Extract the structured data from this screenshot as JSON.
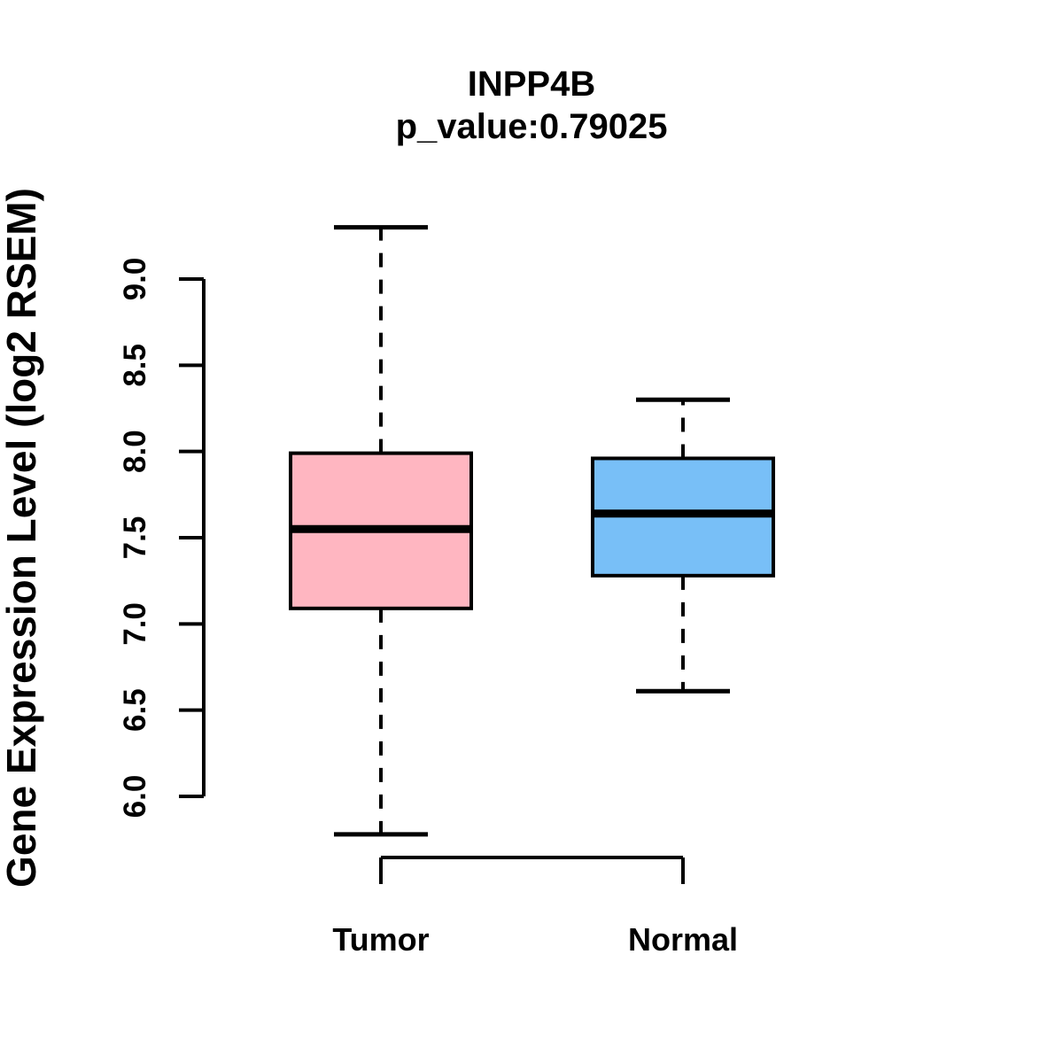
{
  "chart_data": {
    "type": "boxplot",
    "title": "INPP4B",
    "subtitle": "p_value:0.79025",
    "ylabel": "Gene Expression Level (log2 RSEM)",
    "categories": [
      "Tumor",
      "Normal"
    ],
    "y_axis_range": [
      6.0,
      9.0
    ],
    "y_ticks": [
      {
        "value": 6.0,
        "label": "6.0"
      },
      {
        "value": 6.5,
        "label": "6.5"
      },
      {
        "value": 7.0,
        "label": "7.0"
      },
      {
        "value": 7.5,
        "label": "7.5"
      },
      {
        "value": 8.0,
        "label": "8.0"
      },
      {
        "value": 8.5,
        "label": "8.5"
      },
      {
        "value": 9.0,
        "label": "9.0"
      }
    ],
    "grid": false,
    "legend": "none",
    "background": "#FFFFFF",
    "stroke_color": "#000000",
    "series": [
      {
        "name": "Tumor",
        "color": "#FFB6C1",
        "whisker_low": 5.78,
        "q1": 7.09,
        "median": 7.55,
        "q3": 7.99,
        "whisker_high": 9.3
      },
      {
        "name": "Normal",
        "color": "#78BFF7",
        "whisker_low": 6.61,
        "q1": 7.28,
        "median": 7.64,
        "q3": 7.96,
        "whisker_high": 8.3
      }
    ]
  }
}
